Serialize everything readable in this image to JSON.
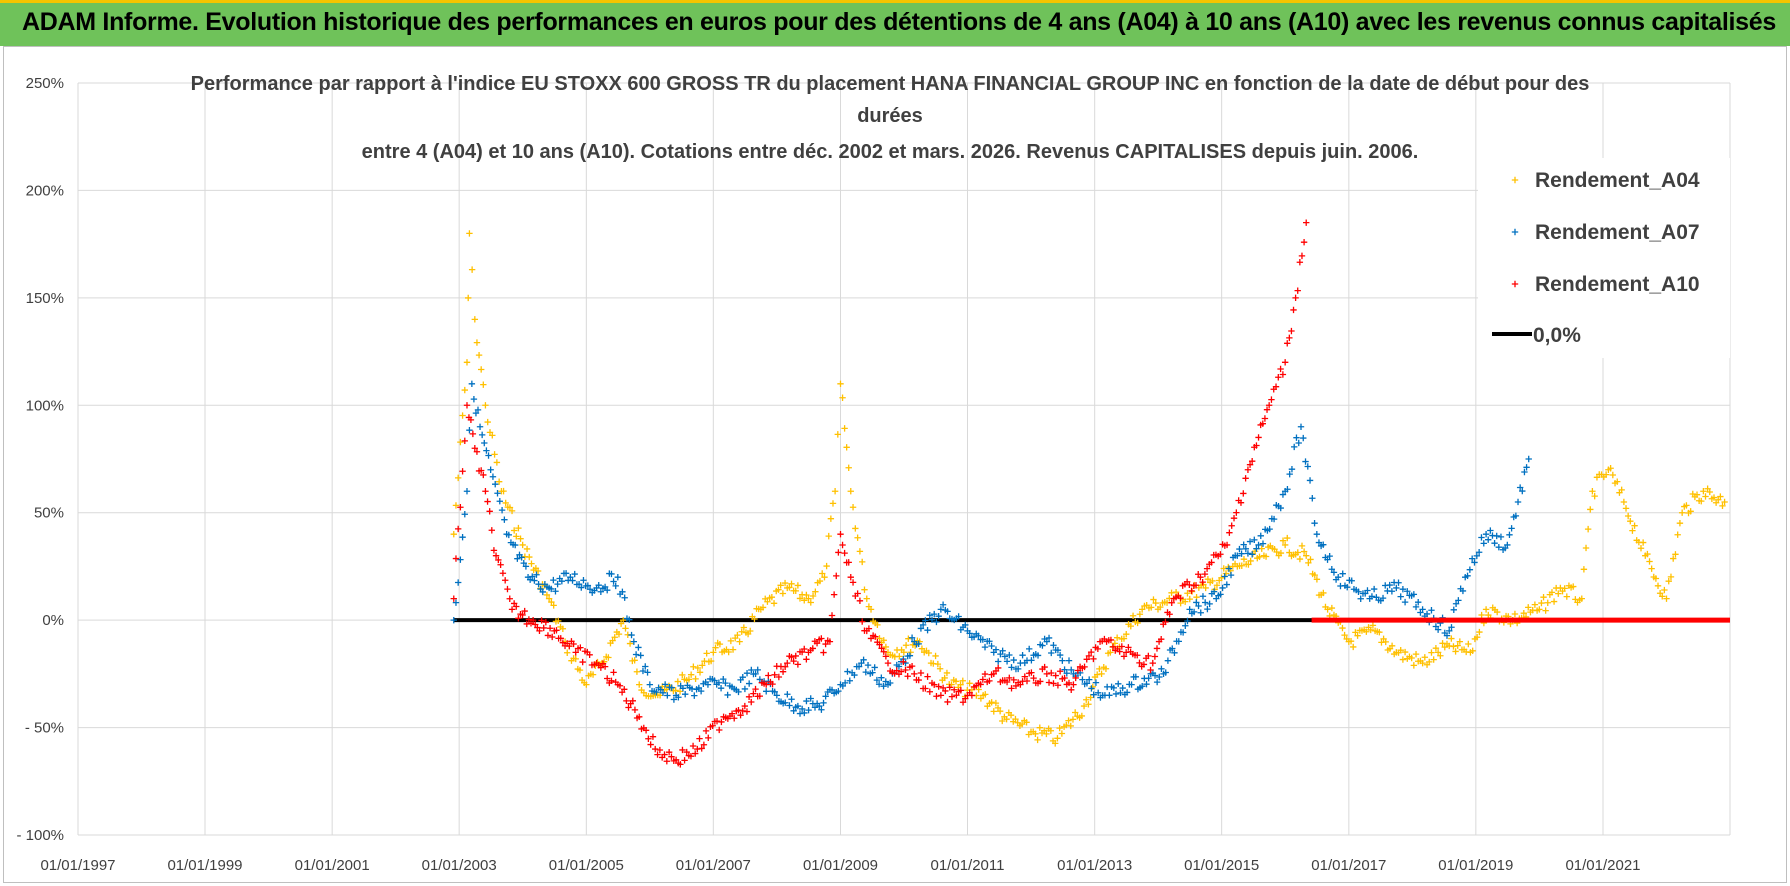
{
  "header": {
    "title": "ADAM Informe. Evolution historique des performances en euros pour des détentions de 4 ans (A04) à 10 ans (A10) avec les revenus connus capitalisés"
  },
  "chart_data": {
    "type": "scatter",
    "title_lines": [
      "Performance par rapport à l'indice EU STOXX 600 GROSS TR  du placement HANA FINANCIAL GROUP INC en fonction de la date de début pour des",
      "durées",
      "entre 4 (A04) et 10 ans (A10). Cotations entre déc. 2002 et mars. 2026. Revenus CAPITALISES depuis juin. 2006."
    ],
    "xlabel": "",
    "ylabel": "",
    "x_ticks": [
      "01/01/1997",
      "01/01/1999",
      "01/01/2001",
      "01/01/2003",
      "01/01/2005",
      "01/01/2007",
      "01/01/2009",
      "01/01/2011",
      "01/01/2013",
      "01/01/2015",
      "01/01/2017",
      "01/01/2019",
      "01/01/2021"
    ],
    "y_ticks": [
      "250%",
      "200%",
      "150%",
      "100%",
      "50%",
      "0%",
      "- 50%",
      "- 100%"
    ],
    "xlim": [
      "1997-01-01",
      "2023-01-01"
    ],
    "ylim": [
      -100,
      250
    ],
    "grid": true,
    "legend_position": "top-right",
    "series": [
      {
        "name": "Rendement_A04",
        "color": "#ffc000",
        "marker": "+",
        "points": [
          [
            "2002-12-01",
            40
          ],
          [
            "2003-02-15",
            120
          ],
          [
            "2003-03-01",
            180
          ],
          [
            "2003-04-01",
            140
          ],
          [
            "2003-06-01",
            100
          ],
          [
            "2003-09-01",
            60
          ],
          [
            "2004-01-01",
            35
          ],
          [
            "2004-06-01",
            10
          ],
          [
            "2004-09-01",
            -10
          ],
          [
            "2005-01-01",
            -30
          ],
          [
            "2005-04-01",
            -20
          ],
          [
            "2005-08-01",
            0
          ],
          [
            "2005-11-01",
            -30
          ],
          [
            "2006-03-01",
            -35
          ],
          [
            "2006-08-01",
            -28
          ],
          [
            "2007-01-01",
            -15
          ],
          [
            "2007-06-01",
            -10
          ],
          [
            "2007-10-01",
            5
          ],
          [
            "2008-03-01",
            15
          ],
          [
            "2008-07-01",
            10
          ],
          [
            "2008-10-01",
            20
          ],
          [
            "2008-12-01",
            60
          ],
          [
            "2009-01-01",
            110
          ],
          [
            "2009-03-01",
            60
          ],
          [
            "2009-06-01",
            10
          ],
          [
            "2009-10-01",
            -15
          ],
          [
            "2010-04-01",
            -10
          ],
          [
            "2010-10-01",
            -30
          ],
          [
            "2011-04-01",
            -35
          ],
          [
            "2011-08-01",
            -45
          ],
          [
            "2012-01-01",
            -52
          ],
          [
            "2012-06-01",
            -55
          ],
          [
            "2012-11-01",
            -40
          ],
          [
            "2013-04-01",
            -15
          ],
          [
            "2013-10-01",
            5
          ],
          [
            "2014-04-01",
            10
          ],
          [
            "2014-10-01",
            15
          ],
          [
            "2015-04-01",
            25
          ],
          [
            "2015-09-01",
            30
          ],
          [
            "2016-01-01",
            35
          ],
          [
            "2016-05-01",
            30
          ],
          [
            "2016-09-01",
            5
          ],
          [
            "2017-01-01",
            -10
          ],
          [
            "2017-06-01",
            -5
          ],
          [
            "2017-10-01",
            -15
          ],
          [
            "2018-03-01",
            -20
          ],
          [
            "2018-08-01",
            -12
          ],
          [
            "2018-12-01",
            -15
          ],
          [
            "2019-03-01",
            5
          ],
          [
            "2019-08-01",
            0
          ],
          [
            "2020-01-01",
            5
          ],
          [
            "2020-05-01",
            15
          ],
          [
            "2020-09-01",
            10
          ],
          [
            "2020-11-01",
            60
          ],
          [
            "2021-02-01",
            70
          ],
          [
            "2021-05-01",
            55
          ],
          [
            "2021-09-01",
            30
          ],
          [
            "2022-01-01",
            10
          ],
          [
            "2022-04-01",
            50
          ],
          [
            "2022-08-01",
            60
          ],
          [
            "2022-12-01",
            55
          ]
        ]
      },
      {
        "name": "Rendement_A07",
        "color": "#0070c0",
        "marker": "+",
        "points": [
          [
            "2002-12-01",
            0
          ],
          [
            "2003-02-15",
            60
          ],
          [
            "2003-03-15",
            110
          ],
          [
            "2003-05-01",
            90
          ],
          [
            "2003-07-01",
            70
          ],
          [
            "2003-10-01",
            40
          ],
          [
            "2004-02-01",
            20
          ],
          [
            "2004-06-01",
            15
          ],
          [
            "2004-10-01",
            20
          ],
          [
            "2005-03-01",
            15
          ],
          [
            "2005-07-01",
            20
          ],
          [
            "2005-10-01",
            -10
          ],
          [
            "2006-01-01",
            -30
          ],
          [
            "2006-06-01",
            -35
          ],
          [
            "2006-12-01",
            -30
          ],
          [
            "2007-05-01",
            -32
          ],
          [
            "2007-09-01",
            -25
          ],
          [
            "2008-01-01",
            -35
          ],
          [
            "2008-05-01",
            -40
          ],
          [
            "2008-09-01",
            -40
          ],
          [
            "2009-01-01",
            -30
          ],
          [
            "2009-05-01",
            -20
          ],
          [
            "2009-10-01",
            -30
          ],
          [
            "2010-03-01",
            -10
          ],
          [
            "2010-08-01",
            5
          ],
          [
            "2011-01-01",
            -5
          ],
          [
            "2011-06-01",
            -15
          ],
          [
            "2011-11-01",
            -20
          ],
          [
            "2012-04-01",
            -10
          ],
          [
            "2012-09-01",
            -25
          ],
          [
            "2013-03-01",
            -35
          ],
          [
            "2013-08-01",
            -30
          ],
          [
            "2014-02-01",
            -25
          ],
          [
            "2014-07-01",
            5
          ],
          [
            "2014-12-01",
            10
          ],
          [
            "2015-04-01",
            30
          ],
          [
            "2015-08-01",
            35
          ],
          [
            "2016-01-01",
            60
          ],
          [
            "2016-04-01",
            90
          ],
          [
            "2016-07-01",
            40
          ],
          [
            "2016-11-01",
            20
          ],
          [
            "2017-05-01",
            10
          ],
          [
            "2017-10-01",
            15
          ],
          [
            "2018-03-01",
            5
          ],
          [
            "2018-08-01",
            -5
          ],
          [
            "2018-11-01",
            20
          ],
          [
            "2019-03-01",
            40
          ],
          [
            "2019-07-01",
            35
          ],
          [
            "2019-11-01",
            75
          ]
        ]
      },
      {
        "name": "Rendement_A10",
        "color": "#ff0000",
        "marker": "+",
        "points": [
          [
            "2002-12-01",
            10
          ],
          [
            "2003-02-15",
            100
          ],
          [
            "2003-04-01",
            80
          ],
          [
            "2003-06-01",
            60
          ],
          [
            "2003-08-01",
            30
          ],
          [
            "2003-11-01",
            5
          ],
          [
            "2004-03-01",
            0
          ],
          [
            "2004-07-01",
            -5
          ],
          [
            "2004-11-01",
            -15
          ],
          [
            "2005-03-01",
            -20
          ],
          [
            "2005-07-01",
            -30
          ],
          [
            "2005-11-01",
            -45
          ],
          [
            "2006-02-01",
            -60
          ],
          [
            "2006-06-01",
            -65
          ],
          [
            "2006-10-01",
            -60
          ],
          [
            "2007-03-01",
            -45
          ],
          [
            "2007-07-01",
            -40
          ],
          [
            "2007-11-01",
            -30
          ],
          [
            "2008-03-01",
            -20
          ],
          [
            "2008-07-01",
            -15
          ],
          [
            "2008-11-01",
            -10
          ],
          [
            "2009-01-01",
            40
          ],
          [
            "2009-03-01",
            20
          ],
          [
            "2009-06-01",
            -5
          ],
          [
            "2009-10-01",
            -20
          ],
          [
            "2010-03-01",
            -25
          ],
          [
            "2010-08-01",
            -35
          ],
          [
            "2011-01-01",
            -35
          ],
          [
            "2011-06-01",
            -25
          ],
          [
            "2011-11-01",
            -30
          ],
          [
            "2012-04-01",
            -25
          ],
          [
            "2012-09-01",
            -30
          ],
          [
            "2013-02-01",
            -10
          ],
          [
            "2013-07-01",
            -15
          ],
          [
            "2013-12-01",
            -20
          ],
          [
            "2014-04-01",
            10
          ],
          [
            "2014-09-01",
            20
          ],
          [
            "2015-02-01",
            35
          ],
          [
            "2015-06-01",
            70
          ],
          [
            "2015-10-01",
            100
          ],
          [
            "2016-01-01",
            120
          ],
          [
            "2016-03-01",
            150
          ],
          [
            "2016-05-01",
            185
          ]
        ]
      },
      {
        "name": "0,0%",
        "color": "#000000",
        "marker": "line",
        "points": [
          [
            "2002-12-01",
            0
          ],
          [
            "2023-01-01",
            0
          ]
        ]
      }
    ]
  }
}
